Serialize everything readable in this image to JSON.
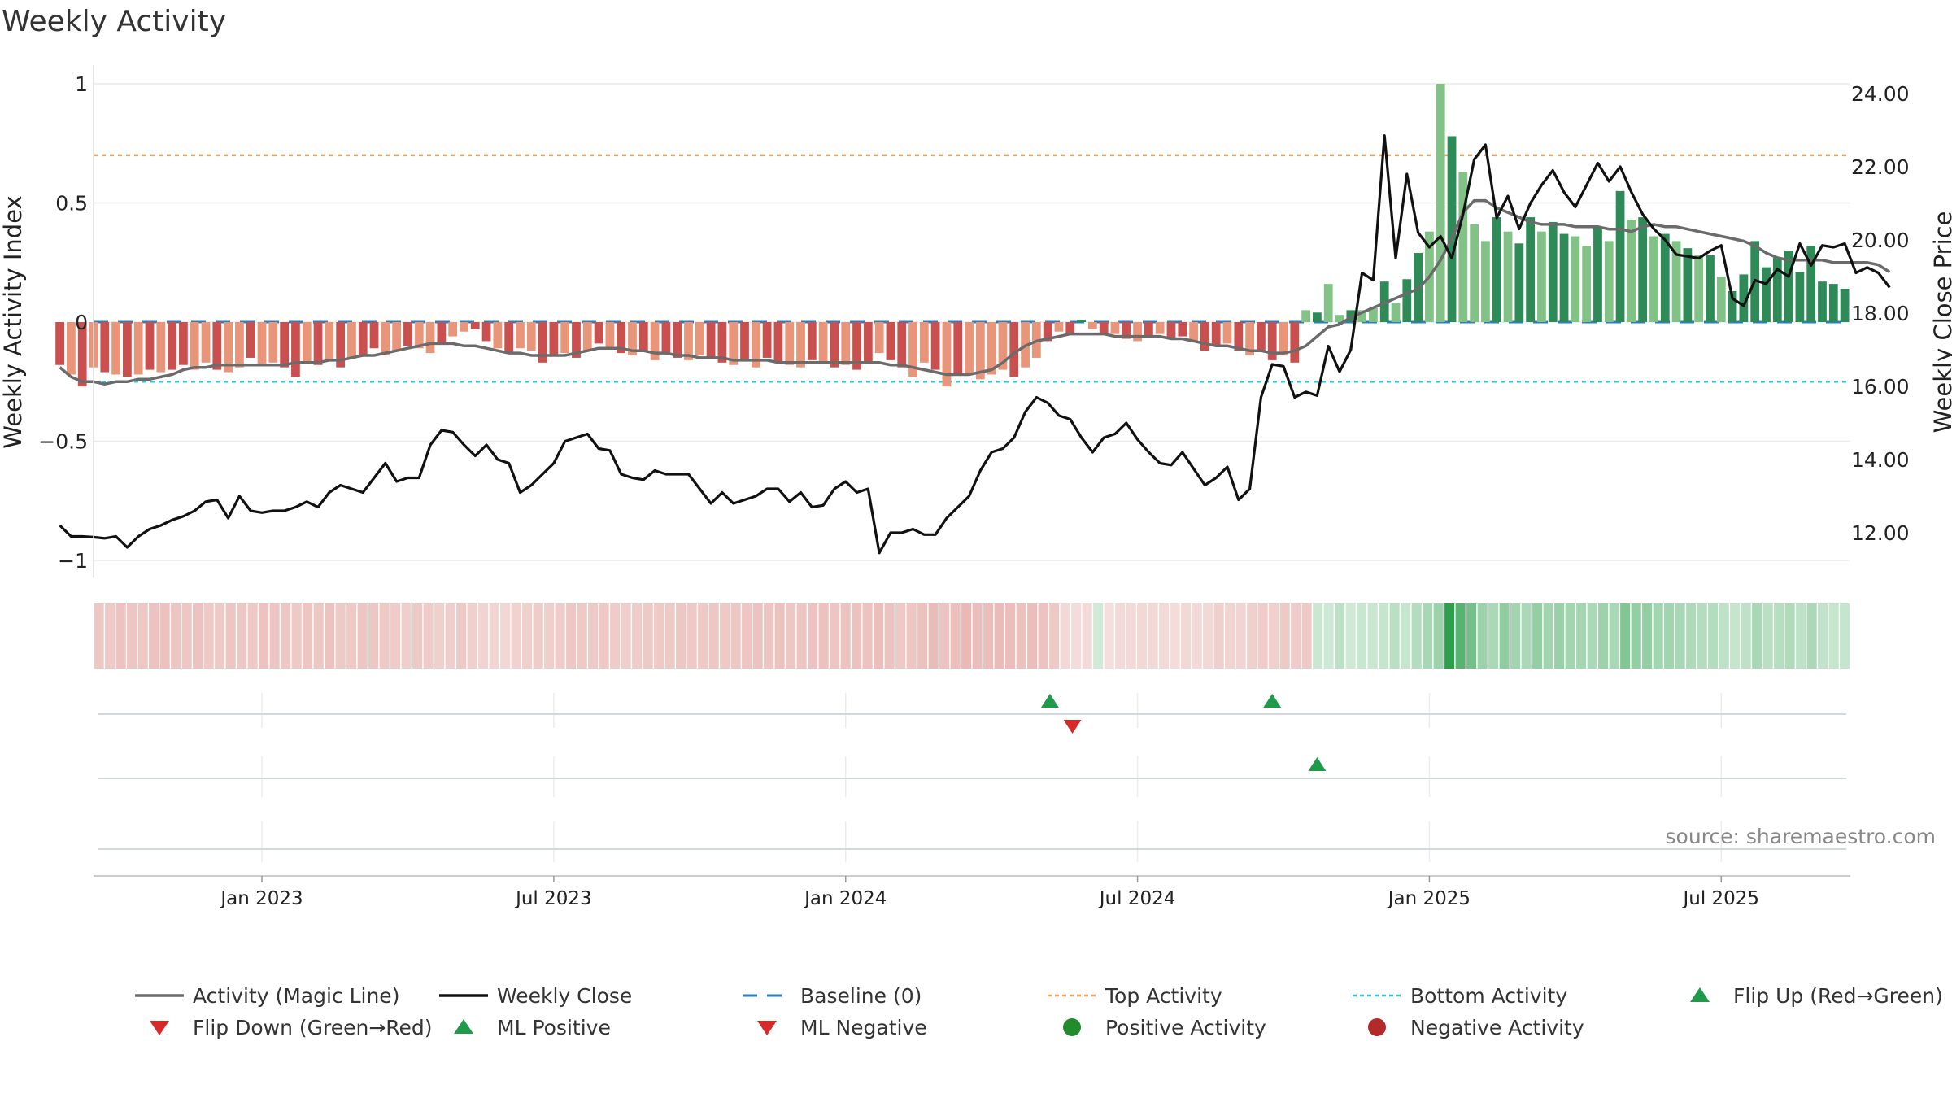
{
  "title": "Weekly Activity",
  "source": "source: sharemaestro.com",
  "colors": {
    "neg_dark": "#c9504f",
    "neg_light": "#e8957a",
    "pos_dark": "#2e8b57",
    "pos_light": "#82c287",
    "magic": "#6b6b6b",
    "close": "#111111",
    "baseline": "#2a7fc1",
    "top": "#f0a35e",
    "bottom": "#2ec4d6",
    "flip_up": "#1f9a4a",
    "flip_down": "#d62a2a",
    "grid": "#ebebeb"
  },
  "chart_data": {
    "type": "bar",
    "title": "Weekly Activity",
    "ylabel_left": "Weekly Activity Index",
    "ylabel_right": "Weekly Close Price",
    "ylim_left": [
      -1.08,
      1.08
    ],
    "ylim_right": [
      10.9,
      25.0
    ],
    "yticks_left": [
      {
        "v": 1,
        "label": "1"
      },
      {
        "v": 0.5,
        "label": "0.5"
      },
      {
        "v": 0,
        "label": "0"
      },
      {
        "v": -0.5,
        "label": "−0.5"
      },
      {
        "v": -1,
        "label": "−1"
      }
    ],
    "yticks_right": [
      24,
      22,
      20,
      18,
      16,
      14,
      12
    ],
    "yticks_right_labels": [
      "24.00",
      "22.00",
      "20.00",
      "18.00",
      "16.00",
      "14.00",
      "12.00"
    ],
    "xticks": [
      {
        "week": 19,
        "label": "Jan 2023"
      },
      {
        "week": 45,
        "label": "Jul 2023"
      },
      {
        "week": 71,
        "label": "Jan 2024"
      },
      {
        "week": 97,
        "label": "Jul 2024"
      },
      {
        "week": 123,
        "label": "Jan 2025"
      },
      {
        "week": 149,
        "label": "Jul 2025"
      }
    ],
    "x_range": [
      4,
      160.5
    ],
    "top_activity": 0.7,
    "bottom_activity": -0.25,
    "baseline": 0,
    "activity": [
      -0.18,
      -0.22,
      -0.27,
      -0.19,
      -0.21,
      -0.22,
      -0.23,
      -0.22,
      -0.2,
      -0.21,
      -0.2,
      -0.18,
      -0.2,
      -0.17,
      -0.2,
      -0.21,
      -0.19,
      -0.15,
      -0.18,
      -0.17,
      -0.19,
      -0.23,
      -0.17,
      -0.18,
      -0.16,
      -0.19,
      -0.15,
      -0.14,
      -0.11,
      -0.14,
      -0.12,
      -0.1,
      -0.11,
      -0.13,
      -0.09,
      -0.06,
      -0.04,
      -0.03,
      -0.08,
      -0.11,
      -0.13,
      -0.11,
      -0.12,
      -0.17,
      -0.14,
      -0.13,
      -0.15,
      -0.12,
      -0.09,
      -0.11,
      -0.13,
      -0.14,
      -0.12,
      -0.16,
      -0.13,
      -0.15,
      -0.16,
      -0.14,
      -0.15,
      -0.17,
      -0.18,
      -0.16,
      -0.19,
      -0.15,
      -0.17,
      -0.18,
      -0.19,
      -0.16,
      -0.17,
      -0.19,
      -0.18,
      -0.2,
      -0.17,
      -0.13,
      -0.16,
      -0.19,
      -0.23,
      -0.17,
      -0.2,
      -0.27,
      -0.22,
      -0.22,
      -0.24,
      -0.22,
      -0.2,
      -0.23,
      -0.19,
      -0.15,
      -0.08,
      -0.04,
      -0.05,
      0.01,
      -0.03,
      -0.05,
      -0.05,
      -0.07,
      -0.08,
      -0.06,
      -0.05,
      -0.07,
      -0.06,
      -0.08,
      -0.12,
      -0.1,
      -0.09,
      -0.12,
      -0.14,
      -0.12,
      -0.16,
      -0.14,
      -0.17,
      0.05,
      0.04,
      0.16,
      0.03,
      0.05,
      0.05,
      0.06,
      0.17,
      0.08,
      0.18,
      0.29,
      0.38,
      1.0,
      0.78,
      0.63,
      0.41,
      0.34,
      0.44,
      0.38,
      0.33,
      0.44,
      0.38,
      0.42,
      0.37,
      0.36,
      0.32,
      0.4,
      0.34,
      0.55,
      0.43,
      0.44,
      0.36,
      0.37,
      0.34,
      0.31,
      0.28,
      0.28,
      0.19,
      0.13,
      0.2,
      0.34,
      0.23,
      0.27,
      0.3,
      0.21,
      0.32,
      0.17,
      0.16,
      0.14
    ],
    "activity_color_codes": "DLDLDLDLDLDDLLDLLDLLDDLDLDLDDLLDLLDLLDDLDLLDDLDLDLDLDLDDLLDDLDLDDLLDLDLDDLDDLLDLDLLLLDLLDLDDLDLDLDLDDLDDLDLDDLDLDLLDLLDLDDLLDLLLDLDDLDDLLDLDLDLDLDLDL",
    "magic_line": [
      -0.19,
      -0.23,
      -0.25,
      -0.25,
      -0.26,
      -0.25,
      -0.25,
      -0.24,
      -0.24,
      -0.23,
      -0.22,
      -0.2,
      -0.19,
      -0.19,
      -0.18,
      -0.18,
      -0.18,
      -0.18,
      -0.18,
      -0.18,
      -0.18,
      -0.17,
      -0.17,
      -0.17,
      -0.16,
      -0.16,
      -0.15,
      -0.14,
      -0.14,
      -0.13,
      -0.12,
      -0.11,
      -0.1,
      -0.09,
      -0.09,
      -0.09,
      -0.1,
      -0.1,
      -0.11,
      -0.12,
      -0.13,
      -0.13,
      -0.14,
      -0.14,
      -0.14,
      -0.14,
      -0.13,
      -0.12,
      -0.11,
      -0.11,
      -0.11,
      -0.12,
      -0.12,
      -0.13,
      -0.13,
      -0.14,
      -0.14,
      -0.15,
      -0.15,
      -0.15,
      -0.16,
      -0.16,
      -0.16,
      -0.16,
      -0.17,
      -0.17,
      -0.17,
      -0.17,
      -0.17,
      -0.17,
      -0.17,
      -0.17,
      -0.17,
      -0.17,
      -0.18,
      -0.18,
      -0.19,
      -0.2,
      -0.21,
      -0.22,
      -0.22,
      -0.22,
      -0.21,
      -0.2,
      -0.17,
      -0.13,
      -0.1,
      -0.08,
      -0.07,
      -0.06,
      -0.05,
      -0.05,
      -0.05,
      -0.05,
      -0.06,
      -0.06,
      -0.06,
      -0.06,
      -0.06,
      -0.07,
      -0.07,
      -0.08,
      -0.09,
      -0.1,
      -0.1,
      -0.11,
      -0.12,
      -0.12,
      -0.13,
      -0.13,
      -0.12,
      -0.1,
      -0.06,
      -0.02,
      -0.01,
      0.02,
      0.04,
      0.06,
      0.08,
      0.1,
      0.12,
      0.14,
      0.19,
      0.26,
      0.35,
      0.46,
      0.51,
      0.51,
      0.48,
      0.46,
      0.44,
      0.42,
      0.41,
      0.41,
      0.41,
      0.4,
      0.4,
      0.4,
      0.39,
      0.39,
      0.38,
      0.4,
      0.41,
      0.4,
      0.4,
      0.39,
      0.38,
      0.37,
      0.36,
      0.35,
      0.34,
      0.32,
      0.29,
      0.27,
      0.26,
      0.26,
      0.26,
      0.26,
      0.25,
      0.25,
      0.25,
      0.25,
      0.24,
      0.21
    ],
    "weekly_close": [
      12.2,
      11.9,
      11.9,
      11.88,
      11.85,
      11.9,
      11.6,
      11.9,
      12.1,
      12.2,
      12.35,
      12.45,
      12.6,
      12.85,
      12.9,
      12.4,
      13.0,
      12.6,
      12.55,
      12.6,
      12.6,
      12.7,
      12.85,
      12.7,
      13.1,
      13.3,
      13.2,
      13.1,
      13.5,
      13.9,
      13.4,
      13.5,
      13.5,
      14.4,
      14.8,
      14.75,
      14.4,
      14.1,
      14.4,
      14.0,
      13.9,
      13.1,
      13.3,
      13.6,
      13.9,
      14.5,
      14.6,
      14.7,
      14.3,
      14.25,
      13.6,
      13.5,
      13.45,
      13.7,
      13.6,
      13.6,
      13.6,
      13.2,
      12.8,
      13.1,
      12.8,
      12.9,
      13.0,
      13.2,
      13.2,
      12.85,
      13.1,
      12.7,
      12.75,
      13.2,
      13.4,
      13.1,
      13.2,
      11.45,
      12.0,
      12.0,
      12.1,
      11.95,
      11.95,
      12.4,
      12.7,
      13.0,
      13.7,
      14.2,
      14.3,
      14.6,
      15.3,
      15.7,
      15.55,
      15.2,
      15.1,
      14.6,
      14.2,
      14.6,
      14.7,
      15.0,
      14.55,
      14.2,
      13.9,
      13.85,
      14.2,
      13.75,
      13.3,
      13.5,
      13.8,
      12.9,
      13.2,
      15.7,
      16.6,
      16.55,
      15.7,
      15.85,
      15.75,
      17.1,
      16.4,
      17.0,
      19.1,
      18.9,
      22.85,
      19.5,
      21.8,
      20.2,
      19.8,
      20.1,
      19.5,
      20.7,
      22.2,
      22.6,
      20.6,
      21.2,
      20.3,
      21.0,
      21.5,
      21.9,
      21.3,
      20.9,
      21.5,
      22.1,
      21.6,
      22.0,
      21.3,
      20.7,
      20.3,
      20.0,
      19.6,
      19.55,
      19.5,
      19.7,
      19.85,
      18.4,
      18.2,
      18.9,
      18.8,
      19.2,
      19.0,
      19.9,
      19.3,
      19.85,
      19.8,
      19.9,
      19.1,
      19.25,
      19.1,
      18.7
    ],
    "strip_intensity": [
      0.32,
      0.31,
      0.34,
      0.33,
      0.32,
      0.34,
      0.35,
      0.33,
      0.32,
      0.34,
      0.31,
      0.3,
      0.33,
      0.32,
      0.31,
      0.34,
      0.33,
      0.32,
      0.31,
      0.33,
      0.32,
      0.34,
      0.3,
      0.31,
      0.33,
      0.32,
      0.31,
      0.29,
      0.28,
      0.3,
      0.29,
      0.27,
      0.28,
      0.3,
      0.27,
      0.25,
      0.24,
      0.23,
      0.26,
      0.27,
      0.29,
      0.28,
      0.29,
      0.32,
      0.31,
      0.3,
      0.31,
      0.29,
      0.28,
      0.29,
      0.3,
      0.31,
      0.3,
      0.32,
      0.31,
      0.31,
      0.32,
      0.31,
      0.32,
      0.33,
      0.34,
      0.33,
      0.35,
      0.32,
      0.33,
      0.34,
      0.35,
      0.33,
      0.34,
      0.35,
      0.34,
      0.36,
      0.34,
      0.31,
      0.33,
      0.35,
      0.38,
      0.34,
      0.36,
      0.4,
      0.37,
      0.37,
      0.38,
      0.37,
      0.35,
      0.37,
      0.34,
      0.3,
      0.22,
      0.2,
      0.21,
      0.22,
      0.19,
      0.21,
      0.21,
      0.22,
      0.22,
      0.21,
      0.2,
      0.22,
      0.21,
      0.22,
      0.27,
      0.25,
      0.24,
      0.27,
      0.29,
      0.27,
      0.3,
      0.29,
      0.31,
      0.25,
      0.24,
      0.32,
      0.23,
      0.26,
      0.26,
      0.27,
      0.33,
      0.28,
      0.36,
      0.42,
      0.47,
      1.0,
      0.8,
      0.66,
      0.48,
      0.4,
      0.52,
      0.45,
      0.4,
      0.51,
      0.45,
      0.49,
      0.44,
      0.43,
      0.4,
      0.47,
      0.41,
      0.6,
      0.51,
      0.51,
      0.44,
      0.45,
      0.42,
      0.39,
      0.36,
      0.36,
      0.31,
      0.28,
      0.31,
      0.41,
      0.33,
      0.35,
      0.38,
      0.31,
      0.4,
      0.29,
      0.28,
      0.27
    ],
    "flip_up_weeks": [
      89.2,
      109.0
    ],
    "flip_down_weeks": [
      91.2
    ],
    "ml_positive_weeks": [
      113.0
    ],
    "ml_negative_weeks": []
  },
  "legend": [
    {
      "key": "magic",
      "label": "Activity (Magic Line)",
      "symbol": "line-solid"
    },
    {
      "key": "close",
      "label": "Weekly Close",
      "symbol": "line-solid"
    },
    {
      "key": "baseline",
      "label": "Baseline (0)",
      "symbol": "line-dashed"
    },
    {
      "key": "top",
      "label": "Top Activity",
      "symbol": "line-dotted"
    },
    {
      "key": "bottom",
      "label": "Bottom Activity",
      "symbol": "line-dotted"
    },
    {
      "key": "flip_up",
      "label": "Flip Up (Red→Green)",
      "symbol": "triangle-up"
    },
    {
      "key": "flip_down",
      "label": "Flip Down (Green→Red)",
      "symbol": "triangle-down"
    },
    {
      "key": "ml_pos",
      "label": "ML Positive",
      "symbol": "triangle-up"
    },
    {
      "key": "ml_neg",
      "label": "ML Negative",
      "symbol": "triangle-down"
    },
    {
      "key": "pos_act",
      "label": "Positive Activity",
      "symbol": "circle"
    },
    {
      "key": "neg_act",
      "label": "Negative Activity",
      "symbol": "circle"
    }
  ]
}
